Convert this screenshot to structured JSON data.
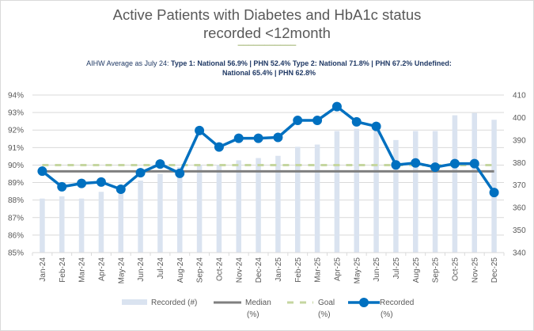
{
  "chart_data": {
    "type": "bar+line",
    "title": [
      "Active Patients with Diabetes and HbA1c status",
      "recorded <12month"
    ],
    "title_divider": "___________",
    "subtitle": {
      "prefix": "AIHW Average as July 24: ",
      "line1_bold": "Type  1: National 56.9% | PHN 52.4%      Type  2: National 71.8% | PHN 67.2%   Undefined:",
      "line2_bold": "National 65.4% | PHN 62.8%"
    },
    "categories": [
      "Jan-24",
      "Feb-24",
      "Mar-24",
      "Apr-24",
      "May-24",
      "Jun-24",
      "Jul-24",
      "Aug-24",
      "Sep-24",
      "Oct-24",
      "Nov-24",
      "Dec-24",
      "Jan-25",
      "Feb-25",
      "Mar-25",
      "Apr-25",
      "May-25",
      "Jun-25",
      "Jul-25",
      "Aug-25",
      "Sep-25",
      "Oct-25",
      "Nov-25",
      "Dec-25"
    ],
    "series": [
      {
        "name": "Recorded (#)",
        "type": "bar",
        "axis": "right",
        "color": "#dae3f0",
        "values": [
          364,
          365,
          364,
          367,
          366,
          372,
          375,
          378,
          379,
          379,
          381,
          382,
          383,
          387,
          388,
          394,
          395,
          395,
          390,
          394,
          394,
          401,
          402,
          399
        ]
      },
      {
        "name": "Median (%)",
        "type": "line",
        "axis": "left",
        "color": "#7f7f7f",
        "values": [
          89.64,
          89.64,
          89.64,
          89.64,
          89.64,
          89.64,
          89.64,
          89.64,
          89.64,
          89.64,
          89.64,
          89.64,
          89.64,
          89.64,
          89.64,
          89.64,
          89.64,
          89.64,
          89.64,
          89.64,
          89.64,
          89.64,
          89.64,
          89.64
        ]
      },
      {
        "name": "Goal (%)",
        "type": "line",
        "axis": "left",
        "dashed": true,
        "color": "#c5d6a0",
        "values": [
          90,
          90,
          90,
          90,
          90,
          90,
          90,
          90,
          90,
          90,
          90,
          90,
          90,
          90,
          90,
          90,
          90,
          90,
          90,
          90,
          90,
          90,
          90,
          90
        ]
      },
      {
        "name": "Recorded (%)",
        "type": "line",
        "axis": "left",
        "markers": true,
        "color": "#0070c0",
        "values": [
          89.65,
          88.76,
          88.95,
          89.03,
          88.62,
          89.56,
          90.06,
          89.53,
          91.97,
          91.03,
          91.53,
          91.53,
          91.58,
          92.55,
          92.55,
          93.34,
          92.47,
          92.21,
          90.01,
          90.12,
          89.88,
          90.08,
          90.08,
          88.43
        ]
      }
    ],
    "y_left": {
      "min": 85,
      "max": 94,
      "step": 1,
      "tick_labels": [
        "85%",
        "86%",
        "87%",
        "88%",
        "89%",
        "90%",
        "91%",
        "92%",
        "93%",
        "94%"
      ]
    },
    "y_right": {
      "min": 340,
      "max": 410,
      "step": 10,
      "tick_labels": [
        "340",
        "350",
        "360",
        "370",
        "380",
        "390",
        "400",
        "410"
      ]
    },
    "grid": true,
    "legend": {
      "position": "bottom",
      "items": [
        {
          "label_lines": [
            "Recorded (#)"
          ],
          "key": "bar"
        },
        {
          "label_lines": [
            "Median",
            "(%)"
          ],
          "key": "median"
        },
        {
          "label_lines": [
            "Goal",
            "(%)"
          ],
          "key": "goal"
        },
        {
          "label_lines": [
            "Recorded",
            "(%)"
          ],
          "key": "recorded"
        }
      ]
    },
    "xlabel": "",
    "ylabel_left": "",
    "ylabel_right": ""
  }
}
